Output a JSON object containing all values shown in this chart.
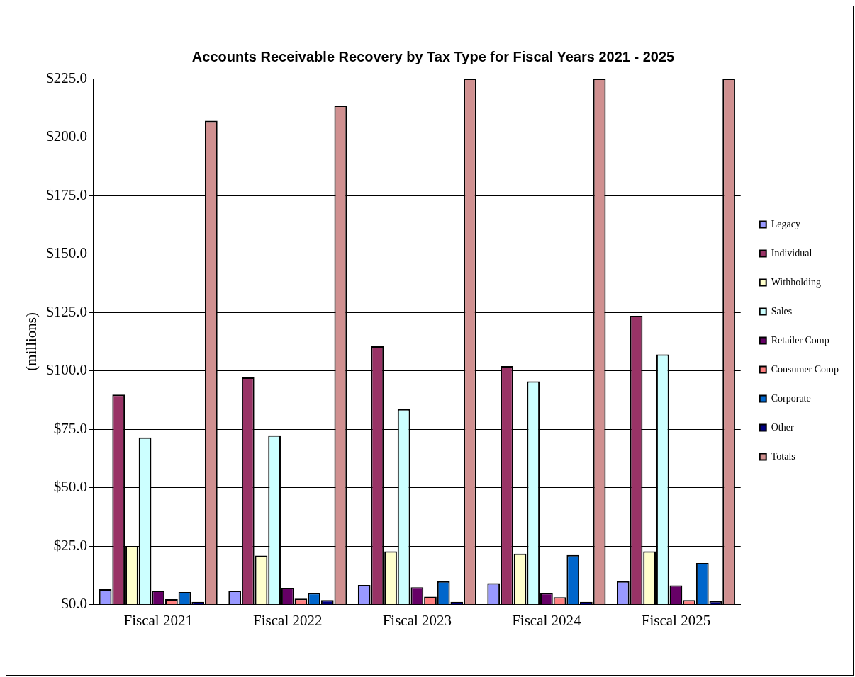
{
  "chart_data": {
    "type": "bar",
    "title": "Accounts Receivable Recovery by Tax Type for Fiscal Years 2021 - 2025",
    "ylabel": "(millions)",
    "categories": [
      "Fiscal 2021",
      "Fiscal 2022",
      "Fiscal 2023",
      "Fiscal 2024",
      "Fiscal 2025"
    ],
    "series": [
      {
        "name": "Legacy",
        "color": "#9999ff",
        "values": [
          6.6,
          6.0,
          8.4,
          9.2,
          10.0
        ]
      },
      {
        "name": "Individual",
        "color": "#993366",
        "values": [
          89.8,
          97.2,
          110.5,
          102.0,
          123.5
        ]
      },
      {
        "name": "Withholding",
        "color": "#ffffcc",
        "values": [
          25.1,
          21.0,
          22.8,
          21.8,
          22.8
        ]
      },
      {
        "name": "Sales",
        "color": "#ccffff",
        "values": [
          71.5,
          72.4,
          83.6,
          95.5,
          107.0
        ]
      },
      {
        "name": "Retailer Comp",
        "color": "#660066",
        "values": [
          6.0,
          7.2,
          7.4,
          5.0,
          8.3
        ]
      },
      {
        "name": "Consumer Comp",
        "color": "#ff8080",
        "values": [
          2.4,
          2.6,
          3.4,
          3.2,
          2.0
        ]
      },
      {
        "name": "Corporate",
        "color": "#0066cc",
        "values": [
          5.4,
          5.0,
          10.0,
          21.2,
          17.8
        ]
      },
      {
        "name": "Other",
        "color": "#000080",
        "values": [
          1.2,
          2.0,
          1.2,
          1.2,
          1.6
        ]
      },
      {
        "name": "Totals",
        "color": "#d09090",
        "values": [
          207.0,
          213.5,
          225.0,
          225.0,
          225.0
        ]
      }
    ],
    "ylim": [
      0,
      225
    ],
    "yticks": [
      {
        "value": 0,
        "label": "$0.0"
      },
      {
        "value": 25,
        "label": "$25.0"
      },
      {
        "value": 50,
        "label": "$50.0"
      },
      {
        "value": 75,
        "label": "$75.0"
      },
      {
        "value": 100,
        "label": "$100.0"
      },
      {
        "value": 125,
        "label": "$125.0"
      },
      {
        "value": 150,
        "label": "$150.0"
      },
      {
        "value": 175,
        "label": "$175.0"
      },
      {
        "value": 200,
        "label": "$200.0"
      },
      {
        "value": 225,
        "label": "$225.0"
      }
    ],
    "grid": "y",
    "legend": "right"
  }
}
